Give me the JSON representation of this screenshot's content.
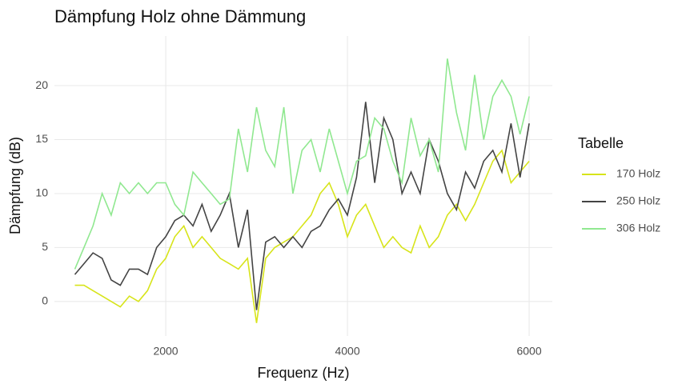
{
  "chart_data": {
    "type": "line",
    "title": "Dämpfung Holz ohne Dämmung",
    "x_label": "Frequenz (Hz)",
    "y_label": "Dämpfung (dB)",
    "legend_title": "Tabelle",
    "legend": "right",
    "grid": true,
    "xlim": [
      775,
      6255
    ],
    "xticks": [
      2000,
      4000,
      6000
    ],
    "ylim": [
      -3.2,
      24.6
    ],
    "yticks": [
      0,
      5,
      10,
      15,
      20
    ],
    "x": [
      1000,
      1100,
      1200,
      1300,
      1400,
      1500,
      1600,
      1700,
      1800,
      1900,
      2000,
      2100,
      2200,
      2300,
      2400,
      2500,
      2600,
      2700,
      2800,
      2900,
      3000,
      3100,
      3200,
      3300,
      3400,
      3500,
      3600,
      3700,
      3800,
      3900,
      4000,
      4100,
      4200,
      4300,
      4400,
      4500,
      4600,
      4700,
      4800,
      4900,
      5000,
      5100,
      5200,
      5300,
      5400,
      5500,
      5600,
      5700,
      5800,
      5900,
      6000
    ],
    "series": [
      {
        "name": "170 Holz",
        "color": "#d7e41a",
        "values": [
          1.5,
          1.5,
          1,
          0.5,
          0,
          -0.5,
          0.5,
          0,
          1,
          3,
          4,
          6,
          7,
          5,
          6,
          5,
          4,
          3.5,
          3,
          4,
          -2,
          4,
          5,
          5.5,
          6,
          7,
          8,
          10,
          11,
          9,
          6,
          8,
          9,
          7,
          5,
          6,
          5,
          4.5,
          7,
          5,
          6,
          8,
          9,
          7.5,
          9,
          11,
          13,
          14,
          11,
          12,
          13
        ]
      },
      {
        "name": "250 Holz",
        "color": "#444444",
        "values": [
          2.5,
          3.5,
          4.5,
          4,
          2,
          1.5,
          3,
          3,
          2.5,
          5,
          6,
          7.5,
          8,
          7,
          9,
          6.5,
          8,
          10,
          5,
          8.5,
          -0.8,
          5.5,
          6,
          5,
          6,
          5,
          6.5,
          7,
          8.5,
          9.5,
          8,
          11.5,
          18.5,
          11,
          17,
          15,
          10,
          12,
          10,
          15,
          13,
          10,
          8.5,
          12,
          10.5,
          13,
          14,
          12,
          16.5,
          11.5,
          16.5
        ]
      },
      {
        "name": "306 Holz",
        "color": "#90e890",
        "values": [
          3,
          5,
          7,
          10,
          8,
          11,
          10,
          11,
          10,
          11,
          11,
          9,
          8,
          12,
          11,
          10,
          9,
          9.5,
          16,
          12,
          18,
          14,
          12.5,
          18,
          10,
          14,
          15,
          12,
          16,
          13,
          10,
          13,
          13.5,
          17,
          16,
          13,
          11,
          17,
          13.5,
          15,
          12,
          22.5,
          17.5,
          14,
          21,
          15,
          19,
          20.5,
          19,
          15.5,
          19
        ]
      }
    ]
  }
}
